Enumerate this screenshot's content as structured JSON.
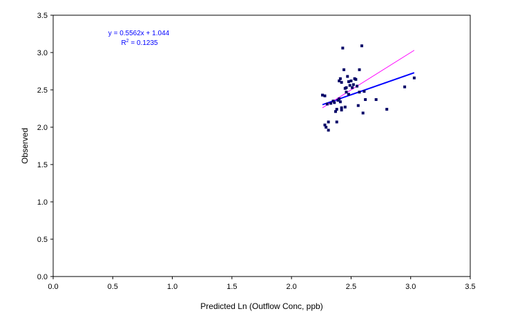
{
  "chart_data": {
    "type": "scatter",
    "title": "",
    "xlabel": "Predicted Ln (Outflow Conc, ppb)",
    "ylabel": "Observed",
    "xlim": [
      0,
      3.5
    ],
    "ylim": [
      0,
      3.5
    ],
    "xticks": [
      "0.0",
      "0.5",
      "1.0",
      "1.5",
      "2.0",
      "2.5",
      "3.0",
      "3.5"
    ],
    "yticks": [
      "0.0",
      "0.5",
      "1.0",
      "1.5",
      "2.0",
      "2.5",
      "3.0",
      "3.5"
    ],
    "grid": false,
    "legend": "none",
    "annotations": {
      "equation": "y = 0.5562x + 1.044",
      "r2_prefix": "R",
      "r2_superscript": "2",
      "r2_suffix": " = 0.1235"
    },
    "points": [
      {
        "x": 2.26,
        "y": 2.43
      },
      {
        "x": 2.28,
        "y": 2.42
      },
      {
        "x": 2.28,
        "y": 2.03
      },
      {
        "x": 2.29,
        "y": 2.0
      },
      {
        "x": 2.31,
        "y": 2.07
      },
      {
        "x": 2.31,
        "y": 1.96
      },
      {
        "x": 2.3,
        "y": 2.31
      },
      {
        "x": 2.33,
        "y": 2.32
      },
      {
        "x": 2.35,
        "y": 2.35
      },
      {
        "x": 2.36,
        "y": 2.33
      },
      {
        "x": 2.37,
        "y": 2.21
      },
      {
        "x": 2.38,
        "y": 2.24
      },
      {
        "x": 2.38,
        "y": 2.07
      },
      {
        "x": 2.39,
        "y": 2.36
      },
      {
        "x": 2.4,
        "y": 2.38
      },
      {
        "x": 2.4,
        "y": 2.62
      },
      {
        "x": 2.41,
        "y": 2.65
      },
      {
        "x": 2.41,
        "y": 2.34
      },
      {
        "x": 2.42,
        "y": 2.6
      },
      {
        "x": 2.42,
        "y": 2.26
      },
      {
        "x": 2.42,
        "y": 2.23
      },
      {
        "x": 2.43,
        "y": 3.06
      },
      {
        "x": 2.44,
        "y": 2.77
      },
      {
        "x": 2.45,
        "y": 2.52
      },
      {
        "x": 2.45,
        "y": 2.27
      },
      {
        "x": 2.46,
        "y": 2.47
      },
      {
        "x": 2.46,
        "y": 2.53
      },
      {
        "x": 2.47,
        "y": 2.68
      },
      {
        "x": 2.48,
        "y": 2.61
      },
      {
        "x": 2.48,
        "y": 2.44
      },
      {
        "x": 2.49,
        "y": 2.56
      },
      {
        "x": 2.5,
        "y": 2.62
      },
      {
        "x": 2.51,
        "y": 2.53
      },
      {
        "x": 2.52,
        "y": 2.57
      },
      {
        "x": 2.53,
        "y": 2.65
      },
      {
        "x": 2.54,
        "y": 2.64
      },
      {
        "x": 2.55,
        "y": 2.55
      },
      {
        "x": 2.56,
        "y": 2.29
      },
      {
        "x": 2.57,
        "y": 2.47
      },
      {
        "x": 2.57,
        "y": 2.77
      },
      {
        "x": 2.59,
        "y": 3.09
      },
      {
        "x": 2.6,
        "y": 2.19
      },
      {
        "x": 2.61,
        "y": 2.48
      },
      {
        "x": 2.62,
        "y": 2.37
      },
      {
        "x": 2.71,
        "y": 2.37
      },
      {
        "x": 2.8,
        "y": 2.24
      },
      {
        "x": 2.95,
        "y": 2.54
      },
      {
        "x": 3.03,
        "y": 2.66
      }
    ],
    "series": [
      {
        "type": "line",
        "color": "#0000ff",
        "width": 2,
        "slope": 0.5562,
        "intercept": 1.044,
        "x_range": [
          2.26,
          3.03
        ]
      },
      {
        "type": "line",
        "color": "#ff00ff",
        "width": 1,
        "slope": 1,
        "intercept": 0,
        "x_range": [
          2.26,
          3.03
        ]
      }
    ],
    "marker_color": "#000066"
  }
}
